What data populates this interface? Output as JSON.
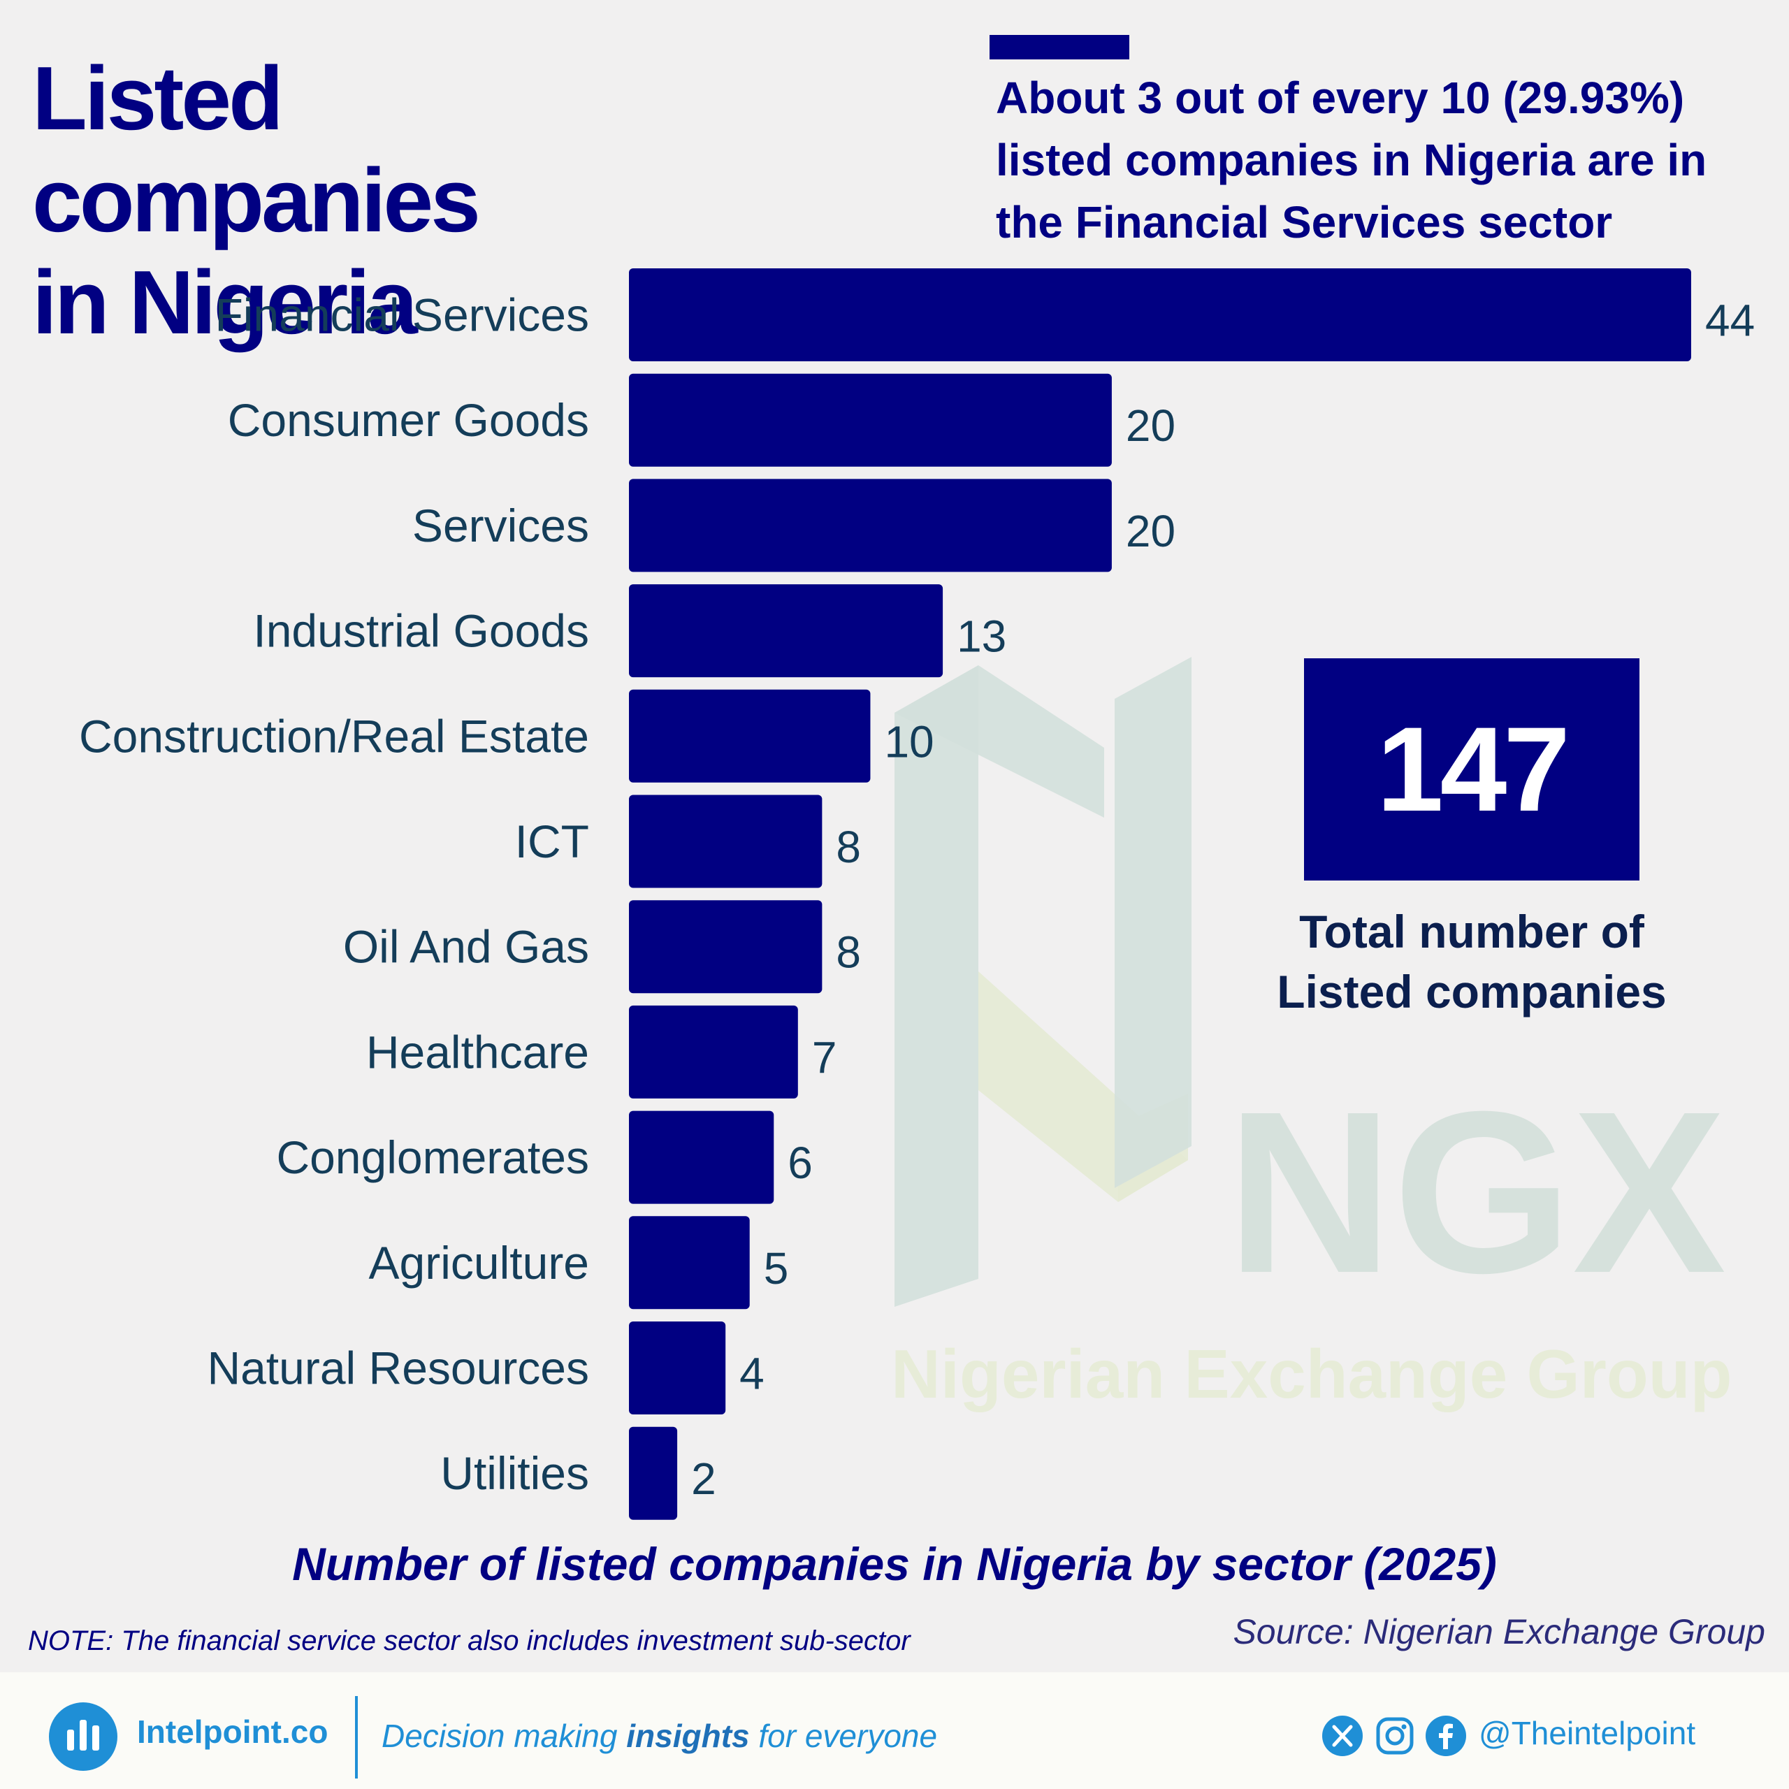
{
  "header": {
    "title_line1": "Listed companies",
    "title_line2": "in Nigeria",
    "callout": "About 3 out of every 10 (29.93%) listed companies in Nigeria are in the Financial Services sector"
  },
  "chart_data": {
    "type": "bar",
    "orientation": "horizontal",
    "title": "Number of listed companies in Nigeria by sector (2025)",
    "categories": [
      "Financial Services",
      "Consumer Goods",
      "Services",
      "Industrial Goods",
      "Construction/Real Estate",
      "ICT",
      "Oil And Gas",
      "Healthcare",
      "Conglomerates",
      "Agriculture",
      "Natural Resources",
      "Utilities"
    ],
    "values": [
      44,
      20,
      20,
      13,
      10,
      8,
      8,
      7,
      6,
      5,
      4,
      2
    ],
    "xlabel": "",
    "ylabel": "",
    "xlim": [
      0,
      44
    ],
    "grid": false,
    "legend": "none",
    "bar_color": "#010082",
    "label_color": "#143d59"
  },
  "total": {
    "value": "147",
    "label_line1": "Total number of",
    "label_line2": "Listed companies"
  },
  "watermark": {
    "logo_text": "NGX",
    "org_name": "Nigerian Exchange Group"
  },
  "notes": {
    "note": "NOTE: The financial service sector also includes investment sub-sector",
    "source": "Source: Nigerian Exchange Group"
  },
  "footer": {
    "brand": "Intelpoint.co",
    "tagline_pre": "Decision making ",
    "tagline_bold": "insights",
    "tagline_post": " for everyone",
    "handle": "@Theintelpoint",
    "icons": [
      "x-icon",
      "instagram-icon",
      "facebook-icon"
    ]
  }
}
